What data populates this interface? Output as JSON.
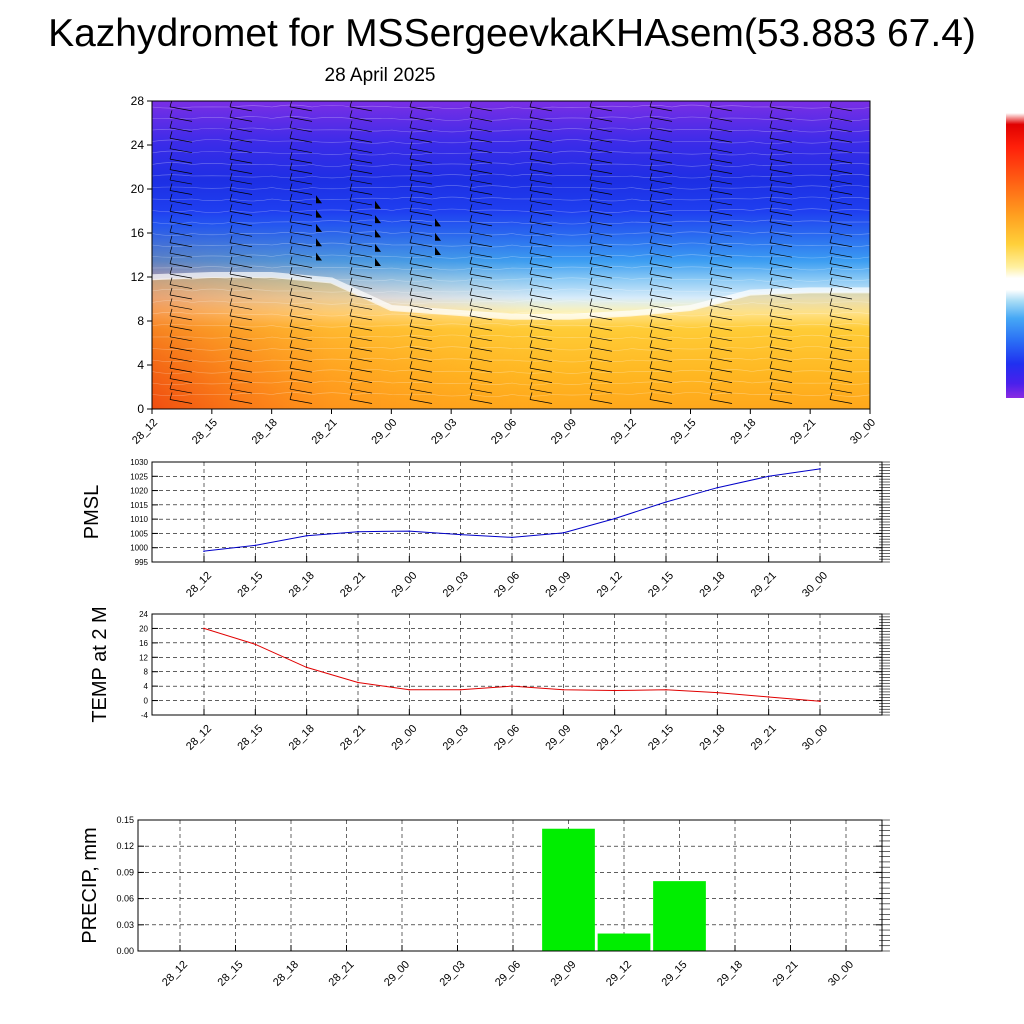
{
  "header": {
    "title": "Kazhydromet for MSSergeevkaKHAsem(53.883 67.4)",
    "subtitle": "28 April 2025"
  },
  "colors": {
    "pmsl_line": "#0000c8",
    "temp_line": "#e00000",
    "precip_bar": "#00ee00",
    "colorbar": [
      "#8a2be2",
      "#5a1de8",
      "#2020f0",
      "#1a4af5",
      "#2a7af5",
      "#3aa0f5",
      "#6ec6f5",
      "#bfe4f5",
      "#ffffff",
      "#fff0a0",
      "#ffd84a",
      "#ffbf28",
      "#ff9a1c",
      "#ff6a14",
      "#ff2a0a",
      "#e00000",
      "#ffffff"
    ]
  },
  "time_labels": [
    "28_12",
    "28_15",
    "28_18",
    "28_21",
    "29_00",
    "29_03",
    "29_06",
    "29_09",
    "29_12",
    "29_15",
    "29_18",
    "29_21",
    "30_00"
  ],
  "chart_data": [
    {
      "type": "heatmap",
      "name": "cross-section",
      "x": [
        "28_12",
        "28_15",
        "28_18",
        "28_21",
        "29_00",
        "29_03",
        "29_06",
        "29_09",
        "29_12",
        "29_15",
        "29_18",
        "29_21",
        "30_00"
      ],
      "ylim": [
        0,
        28
      ],
      "yticks": [
        "0",
        "4",
        "8",
        "12",
        "16",
        "20",
        "24",
        "28"
      ],
      "yticks_values": [
        0,
        4,
        8,
        12,
        16,
        20,
        24,
        28
      ],
      "freezing_level": [
        11.8,
        12.0,
        12.0,
        11.5,
        9.0,
        8.6,
        8.2,
        8.2,
        8.5,
        9.0,
        10.4,
        10.6,
        10.6
      ],
      "grid": false
    },
    {
      "type": "line",
      "ylabel": "PMSL",
      "categories": [
        "28_12",
        "28_15",
        "28_18",
        "28_21",
        "29_00",
        "29_03",
        "29_06",
        "29_09",
        "29_12",
        "29_15",
        "29_18",
        "29_21",
        "30_00"
      ],
      "values": [
        998.8,
        1000.8,
        1004.2,
        1005.6,
        1005.8,
        1004.6,
        1003.6,
        1005.2,
        1010.2,
        1016.0,
        1021.0,
        1025.0,
        1027.6
      ],
      "ylim": [
        995,
        1030
      ],
      "yticks": [
        "995",
        "1000",
        "1005",
        "1010",
        "1015",
        "1020",
        "1025",
        "1030"
      ],
      "yticks_values": [
        995,
        1000,
        1005,
        1010,
        1015,
        1020,
        1025,
        1030
      ],
      "grid": true
    },
    {
      "type": "line",
      "ylabel": "TEMP at 2 M",
      "categories": [
        "28_12",
        "28_15",
        "28_18",
        "28_21",
        "29_00",
        "29_03",
        "29_06",
        "29_09",
        "29_12",
        "29_15",
        "29_18",
        "29_21",
        "30_00"
      ],
      "values": [
        20.0,
        15.6,
        9.2,
        5.0,
        3.0,
        3.0,
        4.0,
        3.0,
        2.8,
        3.0,
        2.2,
        1.0,
        -0.2
      ],
      "ylim": [
        -4,
        24
      ],
      "yticks": [
        "-4",
        "0",
        "4",
        "8",
        "12",
        "16",
        "20",
        "24"
      ],
      "yticks_values": [
        -4,
        0,
        4,
        8,
        12,
        16,
        20,
        24
      ],
      "grid": true
    },
    {
      "type": "bar",
      "ylabel": "PRECIP, mm",
      "categories": [
        "28_12",
        "28_15",
        "28_18",
        "28_21",
        "29_00",
        "29_03",
        "29_06",
        "29_09",
        "29_12",
        "29_15",
        "29_18",
        "29_21",
        "30_00"
      ],
      "values": [
        0,
        0,
        0,
        0,
        0,
        0,
        0,
        0.14,
        0.02,
        0.08,
        0,
        0,
        0
      ],
      "ylim": [
        0,
        0.15
      ],
      "yticks": [
        "0.00",
        "0.03",
        "0.06",
        "0.09",
        "0.12",
        "0.15"
      ],
      "yticks_values": [
        0,
        0.03,
        0.06,
        0.09,
        0.12,
        0.15
      ],
      "grid": true
    }
  ]
}
